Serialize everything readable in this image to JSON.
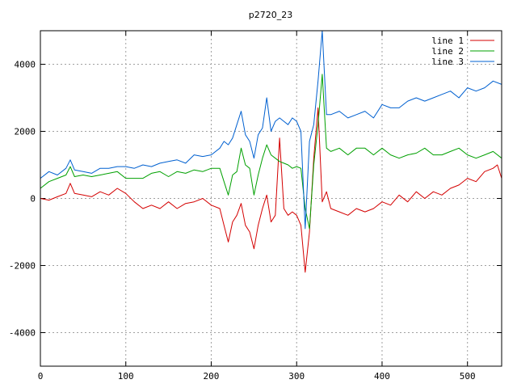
{
  "chart_data": {
    "type": "line",
    "title": "p2720_23",
    "xlabel": "",
    "ylabel": "",
    "xlim": [
      0,
      540
    ],
    "ylim": [
      -5000,
      5000
    ],
    "xticks": [
      0,
      100,
      200,
      300,
      400,
      500
    ],
    "yticks": [
      -4000,
      -2000,
      0,
      2000,
      4000
    ],
    "grid": true,
    "legend_position": "top-right",
    "series": [
      {
        "name": "line 1",
        "color": "#d40000",
        "points": [
          [
            0,
            0
          ],
          [
            10,
            -50
          ],
          [
            20,
            50
          ],
          [
            30,
            150
          ],
          [
            35,
            450
          ],
          [
            40,
            150
          ],
          [
            50,
            100
          ],
          [
            60,
            50
          ],
          [
            70,
            200
          ],
          [
            80,
            100
          ],
          [
            90,
            300
          ],
          [
            100,
            150
          ],
          [
            110,
            -100
          ],
          [
            120,
            -300
          ],
          [
            130,
            -200
          ],
          [
            140,
            -300
          ],
          [
            150,
            -100
          ],
          [
            160,
            -300
          ],
          [
            170,
            -150
          ],
          [
            180,
            -100
          ],
          [
            190,
            0
          ],
          [
            200,
            -200
          ],
          [
            210,
            -300
          ],
          [
            215,
            -800
          ],
          [
            220,
            -1300
          ],
          [
            225,
            -700
          ],
          [
            230,
            -500
          ],
          [
            235,
            -150
          ],
          [
            240,
            -800
          ],
          [
            245,
            -1000
          ],
          [
            250,
            -1500
          ],
          [
            255,
            -800
          ],
          [
            260,
            -300
          ],
          [
            265,
            100
          ],
          [
            270,
            -700
          ],
          [
            275,
            -500
          ],
          [
            280,
            1800
          ],
          [
            285,
            -300
          ],
          [
            290,
            -500
          ],
          [
            295,
            -400
          ],
          [
            300,
            -500
          ],
          [
            305,
            -800
          ],
          [
            310,
            -2200
          ],
          [
            315,
            -1000
          ],
          [
            320,
            1200
          ],
          [
            325,
            2700
          ],
          [
            330,
            -100
          ],
          [
            335,
            200
          ],
          [
            340,
            -300
          ],
          [
            350,
            -400
          ],
          [
            360,
            -500
          ],
          [
            370,
            -300
          ],
          [
            380,
            -400
          ],
          [
            390,
            -300
          ],
          [
            400,
            -100
          ],
          [
            410,
            -200
          ],
          [
            420,
            100
          ],
          [
            430,
            -100
          ],
          [
            440,
            200
          ],
          [
            450,
            0
          ],
          [
            460,
            200
          ],
          [
            470,
            100
          ],
          [
            480,
            300
          ],
          [
            490,
            400
          ],
          [
            500,
            600
          ],
          [
            510,
            500
          ],
          [
            520,
            800
          ],
          [
            530,
            900
          ],
          [
            535,
            1000
          ],
          [
            540,
            600
          ]
        ]
      },
      {
        "name": "line 2",
        "color": "#00a000",
        "points": [
          [
            0,
            300
          ],
          [
            10,
            500
          ],
          [
            20,
            600
          ],
          [
            30,
            700
          ],
          [
            35,
            950
          ],
          [
            40,
            650
          ],
          [
            50,
            700
          ],
          [
            60,
            650
          ],
          [
            70,
            700
          ],
          [
            80,
            750
          ],
          [
            90,
            800
          ],
          [
            100,
            600
          ],
          [
            110,
            600
          ],
          [
            120,
            600
          ],
          [
            130,
            750
          ],
          [
            140,
            800
          ],
          [
            150,
            650
          ],
          [
            160,
            800
          ],
          [
            170,
            750
          ],
          [
            180,
            850
          ],
          [
            190,
            800
          ],
          [
            200,
            900
          ],
          [
            210,
            900
          ],
          [
            215,
            500
          ],
          [
            220,
            100
          ],
          [
            225,
            700
          ],
          [
            230,
            800
          ],
          [
            235,
            1500
          ],
          [
            240,
            1000
          ],
          [
            245,
            900
          ],
          [
            250,
            100
          ],
          [
            255,
            700
          ],
          [
            260,
            1200
          ],
          [
            265,
            1600
          ],
          [
            270,
            1300
          ],
          [
            275,
            1200
          ],
          [
            280,
            1100
          ],
          [
            285,
            1050
          ],
          [
            290,
            1000
          ],
          [
            295,
            900
          ],
          [
            300,
            950
          ],
          [
            305,
            900
          ],
          [
            310,
            -300
          ],
          [
            315,
            -900
          ],
          [
            320,
            1000
          ],
          [
            325,
            2200
          ],
          [
            330,
            3700
          ],
          [
            335,
            1500
          ],
          [
            340,
            1400
          ],
          [
            350,
            1500
          ],
          [
            360,
            1300
          ],
          [
            370,
            1500
          ],
          [
            380,
            1500
          ],
          [
            390,
            1300
          ],
          [
            400,
            1500
          ],
          [
            410,
            1300
          ],
          [
            420,
            1200
          ],
          [
            430,
            1300
          ],
          [
            440,
            1350
          ],
          [
            450,
            1500
          ],
          [
            460,
            1300
          ],
          [
            470,
            1300
          ],
          [
            480,
            1400
          ],
          [
            490,
            1500
          ],
          [
            500,
            1300
          ],
          [
            510,
            1200
          ],
          [
            520,
            1300
          ],
          [
            530,
            1400
          ],
          [
            540,
            1200
          ]
        ]
      },
      {
        "name": "line 3",
        "color": "#0060d0",
        "points": [
          [
            0,
            600
          ],
          [
            10,
            800
          ],
          [
            20,
            700
          ],
          [
            30,
            900
          ],
          [
            35,
            1150
          ],
          [
            40,
            850
          ],
          [
            50,
            800
          ],
          [
            60,
            750
          ],
          [
            70,
            900
          ],
          [
            80,
            900
          ],
          [
            90,
            950
          ],
          [
            100,
            950
          ],
          [
            110,
            900
          ],
          [
            120,
            1000
          ],
          [
            130,
            950
          ],
          [
            140,
            1050
          ],
          [
            150,
            1100
          ],
          [
            160,
            1150
          ],
          [
            170,
            1050
          ],
          [
            180,
            1300
          ],
          [
            190,
            1250
          ],
          [
            200,
            1300
          ],
          [
            210,
            1500
          ],
          [
            215,
            1700
          ],
          [
            220,
            1600
          ],
          [
            225,
            1800
          ],
          [
            230,
            2200
          ],
          [
            235,
            2600
          ],
          [
            240,
            1900
          ],
          [
            245,
            1700
          ],
          [
            250,
            1200
          ],
          [
            255,
            1900
          ],
          [
            260,
            2100
          ],
          [
            265,
            3000
          ],
          [
            270,
            2000
          ],
          [
            275,
            2300
          ],
          [
            280,
            2400
          ],
          [
            285,
            2300
          ],
          [
            290,
            2200
          ],
          [
            295,
            2400
          ],
          [
            300,
            2300
          ],
          [
            305,
            2000
          ],
          [
            310,
            -900
          ],
          [
            315,
            1700
          ],
          [
            320,
            2200
          ],
          [
            325,
            3500
          ],
          [
            330,
            5000
          ],
          [
            335,
            2500
          ],
          [
            340,
            2500
          ],
          [
            350,
            2600
          ],
          [
            360,
            2400
          ],
          [
            370,
            2500
          ],
          [
            380,
            2600
          ],
          [
            390,
            2400
          ],
          [
            400,
            2800
          ],
          [
            410,
            2700
          ],
          [
            420,
            2700
          ],
          [
            430,
            2900
          ],
          [
            440,
            3000
          ],
          [
            450,
            2900
          ],
          [
            460,
            3000
          ],
          [
            470,
            3100
          ],
          [
            480,
            3200
          ],
          [
            490,
            3000
          ],
          [
            500,
            3300
          ],
          [
            510,
            3200
          ],
          [
            520,
            3300
          ],
          [
            530,
            3500
          ],
          [
            540,
            3400
          ]
        ]
      }
    ]
  }
}
